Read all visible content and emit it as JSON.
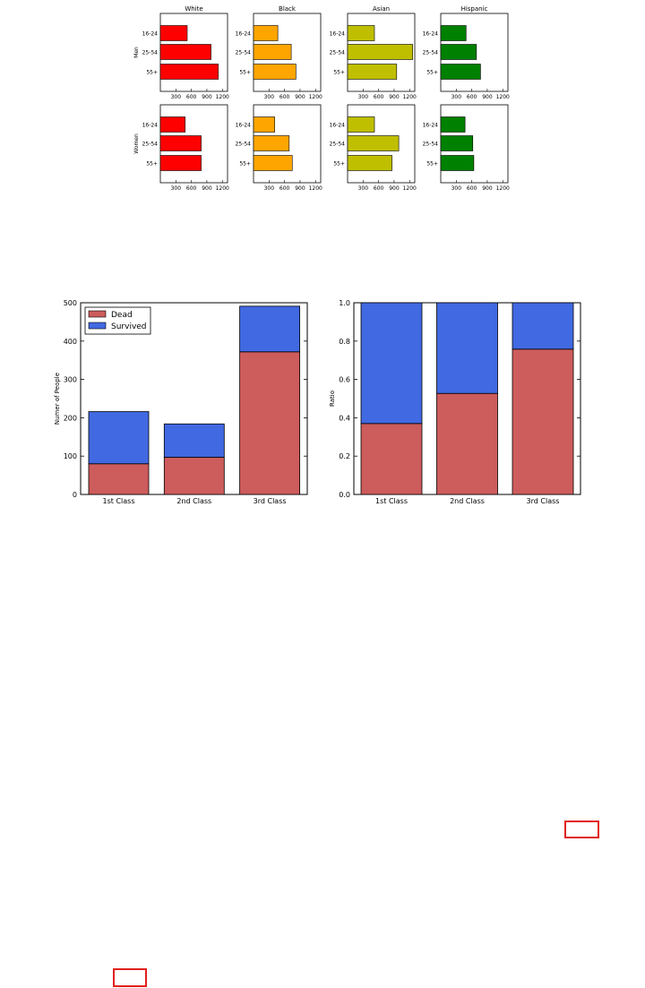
{
  "grid_chart": {
    "columns": [
      "White",
      "Black",
      "Asian",
      "Hispanic"
    ],
    "rows": [
      "Men",
      "Women"
    ],
    "age_groups": [
      "16-24",
      "25-54",
      "55+"
    ],
    "colors": [
      "#ff0000",
      "#ffa500",
      "#bfbf00",
      "#008000"
    ],
    "xticks": [
      300,
      600,
      900,
      1200
    ]
  },
  "chart_data": [
    {
      "type": "bar",
      "orientation": "horizontal",
      "title": "White",
      "ylabel": "Men",
      "categories": [
        "16-24",
        "25-54",
        "55+"
      ],
      "values": [
        520,
        980,
        1120
      ],
      "xlim": [
        0,
        1300
      ]
    },
    {
      "type": "bar",
      "orientation": "horizontal",
      "title": "Black",
      "categories": [
        "16-24",
        "25-54",
        "55+"
      ],
      "values": [
        470,
        730,
        820
      ],
      "xlim": [
        0,
        1300
      ]
    },
    {
      "type": "bar",
      "orientation": "horizontal",
      "title": "Asian",
      "categories": [
        "16-24",
        "25-54",
        "55+"
      ],
      "values": [
        520,
        1260,
        950
      ],
      "xlim": [
        0,
        1300
      ]
    },
    {
      "type": "bar",
      "orientation": "horizontal",
      "title": "Hispanic",
      "categories": [
        "16-24",
        "25-54",
        "55+"
      ],
      "values": [
        490,
        690,
        770
      ],
      "xlim": [
        0,
        1300
      ]
    },
    {
      "type": "bar",
      "orientation": "horizontal",
      "ylabel": "Women",
      "categories": [
        "16-24",
        "25-54",
        "55+"
      ],
      "values": [
        480,
        790,
        790
      ],
      "xlim": [
        0,
        1300
      ]
    },
    {
      "type": "bar",
      "orientation": "horizontal",
      "categories": [
        "16-24",
        "25-54",
        "55+"
      ],
      "values": [
        410,
        690,
        750
      ],
      "xlim": [
        0,
        1300
      ]
    },
    {
      "type": "bar",
      "orientation": "horizontal",
      "categories": [
        "16-24",
        "25-54",
        "55+"
      ],
      "values": [
        520,
        990,
        860
      ],
      "xlim": [
        0,
        1300
      ]
    },
    {
      "type": "bar",
      "orientation": "horizontal",
      "categories": [
        "16-24",
        "25-54",
        "55+"
      ],
      "values": [
        470,
        620,
        640
      ],
      "xlim": [
        0,
        1300
      ]
    },
    {
      "type": "bar",
      "stacked": true,
      "categories": [
        "1st Class",
        "2nd Class",
        "3rd Class"
      ],
      "series": [
        {
          "name": "Dead",
          "color": "#cd5c5c",
          "values": [
            80,
            97,
            372
          ]
        },
        {
          "name": "Survived",
          "color": "#4169e1",
          "values": [
            136,
            87,
            119
          ]
        }
      ],
      "ylabel": "Numer of People",
      "ylim": [
        0,
        500
      ],
      "yticks": [
        0,
        100,
        200,
        300,
        400,
        500
      ],
      "legend": "top-left"
    },
    {
      "type": "bar",
      "stacked": true,
      "categories": [
        "1st Class",
        "2nd Class",
        "3rd Class"
      ],
      "series": [
        {
          "color": "#cd5c5c",
          "values": [
            0.37,
            0.527,
            0.758
          ]
        },
        {
          "color": "#4169e1",
          "values": [
            0.63,
            0.473,
            0.242
          ]
        }
      ],
      "ylabel": "Ratio",
      "ylim": [
        0,
        1
      ],
      "yticks": [
        "0.0",
        "0.2",
        "0.4",
        "0.6",
        "0.8",
        "1.0"
      ]
    }
  ]
}
